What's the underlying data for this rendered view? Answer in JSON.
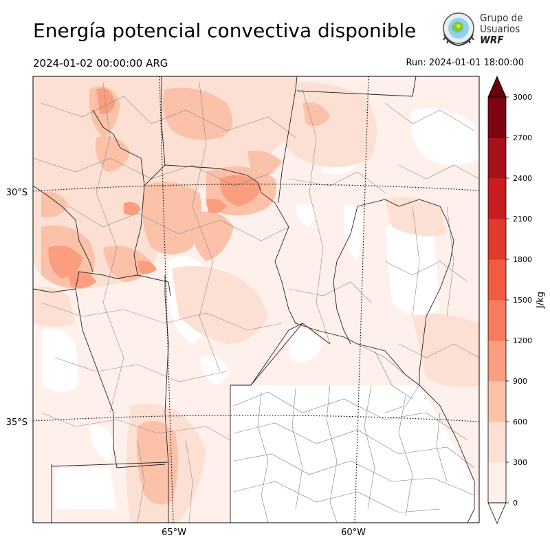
{
  "header": {
    "title": "Energía potencial convectiva disponible",
    "valid_time": "2024-01-02 00:00:00 ARG",
    "run_time": "Run: 2024-01-01 18:00:00"
  },
  "logo": {
    "line1": "Grupo de",
    "line2": "Usuarios",
    "line3": "WRF"
  },
  "map": {
    "lat_labels": [
      "30°S",
      "35°S"
    ],
    "lon_labels": [
      "65°W",
      "60°W"
    ]
  },
  "colorbar": {
    "unit": "J/kg",
    "levels": [
      "0",
      "300",
      "600",
      "900",
      "1200",
      "1500",
      "1800",
      "2100",
      "2400",
      "2700",
      "3000"
    ],
    "colors": [
      "#fff0eb",
      "#fde0d4",
      "#fcc1a9",
      "#fb9e80",
      "#f77c5d",
      "#f05b41",
      "#e03a2c",
      "#c81d20",
      "#a8111a",
      "#7c0510"
    ],
    "over_color": "#67000d",
    "under_color": "#ffffff"
  }
}
